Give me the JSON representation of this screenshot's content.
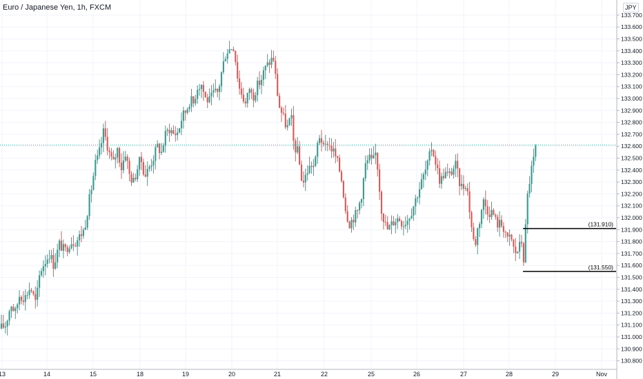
{
  "chart_data": {
    "type": "candlestick",
    "title": "Euro / Japanese Yen, 1h, FXCM",
    "currency": "JPY",
    "y_axis": {
      "ylim": [
        130.74,
        133.8
      ],
      "ticks": [
        "130.800",
        "130.900",
        "131.000",
        "131.100",
        "131.200",
        "131.300",
        "131.400",
        "131.500",
        "131.600",
        "131.700",
        "131.800",
        "131.900",
        "132.000",
        "132.100",
        "132.200",
        "132.300",
        "132.400",
        "132.500",
        "132.600",
        "132.700",
        "132.800",
        "132.900",
        "133.000",
        "133.100",
        "133.200",
        "133.300",
        "133.400",
        "133.500",
        "133.600",
        "133.700"
      ]
    },
    "x_axis": {
      "labels": [
        "13",
        "14",
        "15",
        "18",
        "19",
        "20",
        "21",
        "22",
        "25",
        "26",
        "27",
        "28",
        "29",
        "Nov"
      ]
    },
    "price_line": 132.61,
    "levels": [
      {
        "label": "(131.910)",
        "price": 131.91
      },
      {
        "label": "(131.550)",
        "price": 131.55
      }
    ],
    "colors": {
      "up": "#26a69a",
      "down": "#ef5350",
      "grid": "#f0f3fa",
      "price_line": "#26a69a",
      "level": "#000000",
      "axis_text": "#131722"
    },
    "close_path": [
      [
        0,
        131.07
      ],
      [
        8,
        131.1
      ],
      [
        16,
        131.28
      ],
      [
        22,
        131.2
      ],
      [
        28,
        131.35
      ],
      [
        36,
        131.33
      ],
      [
        44,
        131.42
      ],
      [
        52,
        131.28
      ],
      [
        58,
        131.55
      ],
      [
        64,
        131.62
      ],
      [
        72,
        131.7
      ],
      [
        78,
        131.6
      ],
      [
        86,
        131.78
      ],
      [
        94,
        131.72
      ],
      [
        102,
        131.8
      ],
      [
        110,
        131.8
      ],
      [
        116,
        131.85
      ],
      [
        122,
        131.9
      ],
      [
        128,
        132.1
      ],
      [
        134,
        132.3
      ],
      [
        138,
        132.45
      ],
      [
        142,
        132.5
      ],
      [
        146,
        132.6
      ],
      [
        150,
        132.72
      ],
      [
        154,
        132.65
      ],
      [
        158,
        132.55
      ],
      [
        164,
        132.45
      ],
      [
        170,
        132.58
      ],
      [
        176,
        132.42
      ],
      [
        182,
        132.55
      ],
      [
        188,
        132.35
      ],
      [
        194,
        132.3
      ],
      [
        198,
        132.4
      ],
      [
        204,
        132.5
      ],
      [
        210,
        132.35
      ],
      [
        216,
        132.42
      ],
      [
        222,
        132.5
      ],
      [
        228,
        132.6
      ],
      [
        234,
        132.55
      ],
      [
        240,
        132.7
      ],
      [
        246,
        132.75
      ],
      [
        252,
        132.7
      ],
      [
        258,
        132.72
      ],
      [
        264,
        132.85
      ],
      [
        270,
        132.9
      ],
      [
        276,
        133.0
      ],
      [
        280,
        132.95
      ],
      [
        286,
        133.1
      ],
      [
        292,
        133.12
      ],
      [
        298,
        133.0
      ],
      [
        304,
        132.98
      ],
      [
        310,
        133.05
      ],
      [
        316,
        133.05
      ],
      [
        322,
        133.25
      ],
      [
        328,
        133.4
      ],
      [
        334,
        133.42
      ],
      [
        338,
        133.45
      ],
      [
        342,
        133.3
      ],
      [
        346,
        133.1
      ],
      [
        350,
        133.05
      ],
      [
        356,
        132.95
      ],
      [
        362,
        133.1
      ],
      [
        366,
        133.0
      ],
      [
        372,
        133.1
      ],
      [
        378,
        133.15
      ],
      [
        384,
        133.25
      ],
      [
        390,
        133.3
      ],
      [
        396,
        133.35
      ],
      [
        400,
        133.15
      ],
      [
        404,
        132.95
      ],
      [
        410,
        132.85
      ],
      [
        416,
        132.75
      ],
      [
        422,
        132.85
      ],
      [
        426,
        132.6
      ],
      [
        432,
        132.55
      ],
      [
        436,
        132.35
      ],
      [
        440,
        132.3
      ],
      [
        446,
        132.4
      ],
      [
        452,
        132.45
      ],
      [
        456,
        132.42
      ],
      [
        462,
        132.7
      ],
      [
        466,
        132.65
      ],
      [
        470,
        132.55
      ],
      [
        474,
        132.65
      ],
      [
        478,
        132.6
      ],
      [
        484,
        132.55
      ],
      [
        490,
        132.45
      ],
      [
        496,
        132.3
      ],
      [
        500,
        132.1
      ],
      [
        506,
        131.95
      ],
      [
        512,
        132.0
      ],
      [
        518,
        132.05
      ],
      [
        524,
        132.2
      ],
      [
        530,
        132.45
      ],
      [
        536,
        132.5
      ],
      [
        540,
        132.45
      ],
      [
        544,
        132.55
      ],
      [
        548,
        132.4
      ],
      [
        552,
        132.1
      ],
      [
        558,
        131.95
      ],
      [
        562,
        131.9
      ],
      [
        568,
        131.95
      ],
      [
        572,
        131.98
      ],
      [
        578,
        132.0
      ],
      [
        584,
        131.95
      ],
      [
        590,
        131.98
      ],
      [
        596,
        132.05
      ],
      [
        602,
        132.15
      ],
      [
        608,
        132.25
      ],
      [
        614,
        132.35
      ],
      [
        620,
        132.45
      ],
      [
        626,
        132.6
      ],
      [
        630,
        132.5
      ],
      [
        634,
        132.4
      ],
      [
        638,
        132.3
      ],
      [
        644,
        132.38
      ],
      [
        650,
        132.35
      ],
      [
        656,
        132.4
      ],
      [
        660,
        132.45
      ],
      [
        666,
        132.3
      ],
      [
        670,
        132.25
      ],
      [
        676,
        132.3
      ],
      [
        680,
        132.1
      ],
      [
        684,
        131.9
      ],
      [
        688,
        131.75
      ],
      [
        692,
        131.9
      ],
      [
        696,
        132.0
      ],
      [
        700,
        132.15
      ],
      [
        704,
        132.1
      ],
      [
        708,
        132.05
      ],
      [
        714,
        132.05
      ],
      [
        720,
        131.95
      ],
      [
        726,
        131.95
      ],
      [
        732,
        131.9
      ],
      [
        736,
        131.8
      ],
      [
        740,
        131.85
      ],
      [
        744,
        131.75
      ],
      [
        748,
        131.7
      ],
      [
        752,
        131.75
      ],
      [
        756,
        131.8
      ],
      [
        760,
        131.6
      ],
      [
        762,
        131.95
      ],
      [
        764,
        132.15
      ],
      [
        766,
        132.25
      ],
      [
        770,
        132.4
      ],
      [
        774,
        132.5
      ],
      [
        777,
        132.61
      ]
    ]
  }
}
